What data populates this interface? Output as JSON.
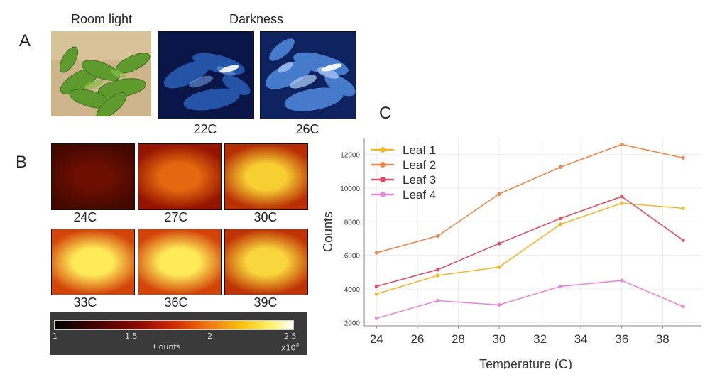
{
  "panel_a": {
    "letter": "A",
    "room_light_label": "Room light",
    "darkness_label": "Darkness",
    "dark_captions": [
      "22C",
      "26C"
    ]
  },
  "panel_b": {
    "letter": "B",
    "tiles": [
      {
        "label": "24C",
        "intensity": 0.15
      },
      {
        "label": "27C",
        "intensity": 0.55
      },
      {
        "label": "30C",
        "intensity": 0.8
      },
      {
        "label": "33C",
        "intensity": 1.0
      },
      {
        "label": "36C",
        "intensity": 1.0
      },
      {
        "label": "39C",
        "intensity": 0.85
      }
    ],
    "colorbar": {
      "ticks": [
        "1",
        "1.5",
        "2",
        "2.5"
      ],
      "label": "Counts",
      "exponent": "x10",
      "exponent_power": "4"
    }
  },
  "panel_c": {
    "letter": "C"
  },
  "chart_data": {
    "type": "line",
    "x": [
      24,
      27,
      30,
      33,
      36,
      39
    ],
    "series": [
      {
        "name": "Leaf 1",
        "color": "#f2b630",
        "values": [
          3700,
          4800,
          5300,
          7850,
          9100,
          8800
        ]
      },
      {
        "name": "Leaf 2",
        "color": "#e88a50",
        "values": [
          6150,
          7150,
          9650,
          11250,
          12600,
          11800
        ]
      },
      {
        "name": "Leaf 3",
        "color": "#d9506a",
        "values": [
          4150,
          5150,
          6700,
          8200,
          9500,
          6900
        ]
      },
      {
        "name": "Leaf 4",
        "color": "#e98ad8",
        "values": [
          2250,
          3300,
          3050,
          4150,
          4500,
          2950
        ]
      }
    ],
    "xlabel": "Temperature (C)",
    "ylabel": "Counts",
    "xlim": [
      23.4,
      39.9
    ],
    "ylim": [
      1800,
      13000
    ],
    "x_ticks": [
      24,
      26,
      28,
      30,
      32,
      34,
      36,
      38
    ],
    "y_ticks": [
      2000,
      4000,
      6000,
      8000,
      10000,
      12000
    ],
    "grid": true,
    "legend_position": "top-left"
  }
}
